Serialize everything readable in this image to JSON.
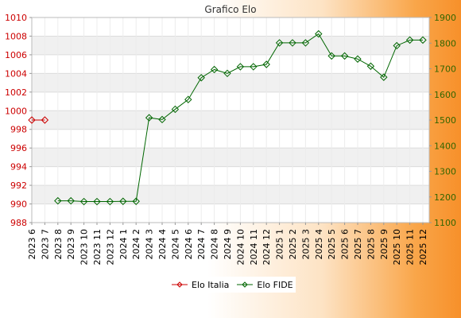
{
  "chart_data": {
    "type": "line",
    "title": "Grafico Elo",
    "categories": [
      "2023 6",
      "2023 7",
      "2023 8",
      "2023 9",
      "2023 10",
      "2023 11",
      "2023 12",
      "2024 1",
      "2024 2",
      "2024 3",
      "2024 4",
      "2024 5",
      "2024 6",
      "2024 7",
      "2024 8",
      "2024 9",
      "2024 10",
      "2024 11",
      "2024 12",
      "2025 1",
      "2025 2",
      "2025 3",
      "2025 4",
      "2025 5",
      "2025 6",
      "2025 7",
      "2025 8",
      "2025 9",
      "2025 10",
      "2025 11",
      "2025 12"
    ],
    "left_axis": {
      "ylim": [
        988,
        1010
      ],
      "ticks": [
        988,
        990,
        992,
        994,
        996,
        998,
        1000,
        1002,
        1004,
        1006,
        1008,
        1010
      ],
      "color": "#cc0000"
    },
    "right_axis": {
      "ylim": [
        1100,
        1900
      ],
      "ticks": [
        1100,
        1200,
        1300,
        1400,
        1500,
        1600,
        1700,
        1800,
        1900
      ],
      "color": "#336600"
    },
    "series": [
      {
        "name": "Elo Italia",
        "axis": "left",
        "color": "#cc0000",
        "values": [
          999,
          999,
          null,
          null,
          null,
          null,
          null,
          null,
          null,
          null,
          null,
          null,
          null,
          null,
          null,
          null,
          null,
          null,
          null,
          null,
          null,
          null,
          null,
          null,
          null,
          null,
          null,
          null,
          null,
          null,
          null
        ]
      },
      {
        "name": "Elo FIDE",
        "axis": "right",
        "color": "#006600",
        "values": [
          null,
          null,
          1185,
          1185,
          1182,
          1182,
          1182,
          1183,
          1183,
          1509,
          1502,
          1542,
          1580,
          1665,
          1697,
          1682,
          1708,
          1708,
          1717,
          1801,
          1801,
          1801,
          1836,
          1750,
          1750,
          1738,
          1710,
          1667,
          1790,
          1812,
          1812
        ]
      }
    ],
    "grid": true,
    "legend_position": "bottom"
  },
  "legend": {
    "items": [
      {
        "label": "Elo Italia",
        "color": "#cc0000"
      },
      {
        "label": "Elo FIDE",
        "color": "#006600"
      }
    ]
  }
}
